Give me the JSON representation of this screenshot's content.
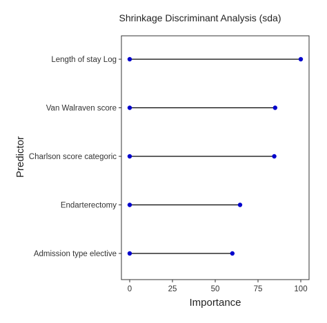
{
  "chart_data": {
    "type": "lollipop",
    "title": "Shrinkage Discriminant Analysis (sda)",
    "xlabel": "Importance",
    "ylabel": "Predictor",
    "xlim": [
      0,
      100
    ],
    "xticks": [
      "0",
      "25",
      "50",
      "75",
      "100"
    ],
    "categories": [
      "Length of stay Log",
      "Van Walraven score",
      "Charlson score categoric",
      "Endarterectomy",
      "Admission type elective"
    ],
    "values": [
      100,
      85,
      84.5,
      64.5,
      60
    ],
    "grid": false,
    "colors": {
      "point": "#0000cc",
      "segment": "#000000",
      "frame": "#333333"
    }
  }
}
